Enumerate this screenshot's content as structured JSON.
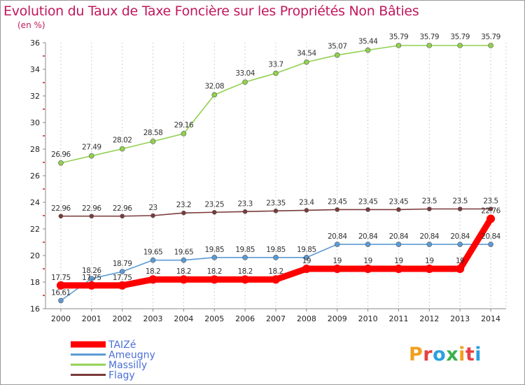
{
  "title": "Evolution du Taux de Taxe Foncière sur les Propriétés Non Bâties",
  "unit_label": "(en %)",
  "logo": {
    "text": "Proxiti",
    "colors": [
      "#f0a020",
      "#e84040",
      "#2aa0e0",
      "#3cb04c",
      "#f0a020",
      "#e84040",
      "#2aa0e0"
    ]
  },
  "chart_data": {
    "type": "line",
    "title": "Evolution du Taux de Taxe Foncière sur les Propriétés Non Bâties",
    "ylabel": "(en %)",
    "xlabel": "",
    "ylim": [
      16,
      36
    ],
    "yticks": [
      16,
      18,
      20,
      22,
      24,
      26,
      28,
      30,
      32,
      34,
      36
    ],
    "x": [
      2000,
      2001,
      2002,
      2003,
      2004,
      2005,
      2006,
      2007,
      2008,
      2009,
      2010,
      2011,
      2012,
      2013,
      2014
    ],
    "grid": "vertical",
    "series": [
      {
        "name": "TAIZé",
        "color": "#ff0000",
        "values": [
          17.75,
          17.75,
          17.75,
          18.2,
          18.2,
          18.2,
          18.2,
          18.2,
          19,
          19,
          19,
          19,
          19,
          19,
          22.76
        ],
        "labels": [
          "17.75",
          "17.75",
          "17.75",
          "18.2",
          "18.2",
          "18.2",
          "18.2",
          "18.2",
          "19",
          "19",
          "19",
          "19",
          "19",
          "19",
          "22.76"
        ]
      },
      {
        "name": "Ameugny",
        "color": "#5b9bd5",
        "values": [
          16.61,
          18.26,
          18.79,
          19.65,
          19.65,
          19.85,
          19.85,
          19.85,
          19.85,
          20.84,
          20.84,
          20.84,
          20.84,
          20.84,
          20.84
        ],
        "labels": [
          "16.61",
          "18.26",
          "18.79",
          "19.65",
          "19.65",
          "19.85",
          "19.85",
          "19.85",
          "19.85",
          "20.84",
          "20.84",
          "20.84",
          "20.84",
          "20.84",
          "20.84"
        ]
      },
      {
        "name": "Massilly",
        "color": "#92d050",
        "values": [
          26.96,
          27.49,
          28.02,
          28.58,
          29.16,
          32.08,
          33.04,
          33.7,
          34.54,
          35.07,
          35.44,
          35.79,
          35.79,
          35.79,
          35.79
        ],
        "labels": [
          "26.96",
          "27.49",
          "28.02",
          "28.58",
          "29.16",
          "32.08",
          "33.04",
          "33.7",
          "34.54",
          "35.07",
          "35.44",
          "35.79",
          "35.79",
          "35.79",
          "35.79"
        ]
      },
      {
        "name": "Flagy",
        "color": "#7b3a3a",
        "values": [
          22.96,
          22.96,
          22.96,
          23,
          23.2,
          23.25,
          23.3,
          23.35,
          23.4,
          23.45,
          23.45,
          23.45,
          23.5,
          23.5,
          23.5
        ],
        "labels": [
          "22.96",
          "22.96",
          "22.96",
          "23",
          "23.2",
          "23.25",
          "23.3",
          "23.35",
          "23.4",
          "23.45",
          "23.45",
          "23.45",
          "23.5",
          "23.5",
          "23.5"
        ]
      }
    ],
    "legend": [
      "TAIZé",
      "Ameugny",
      "Massilly",
      "Flagy"
    ],
    "legend_position": "bottom-left"
  }
}
